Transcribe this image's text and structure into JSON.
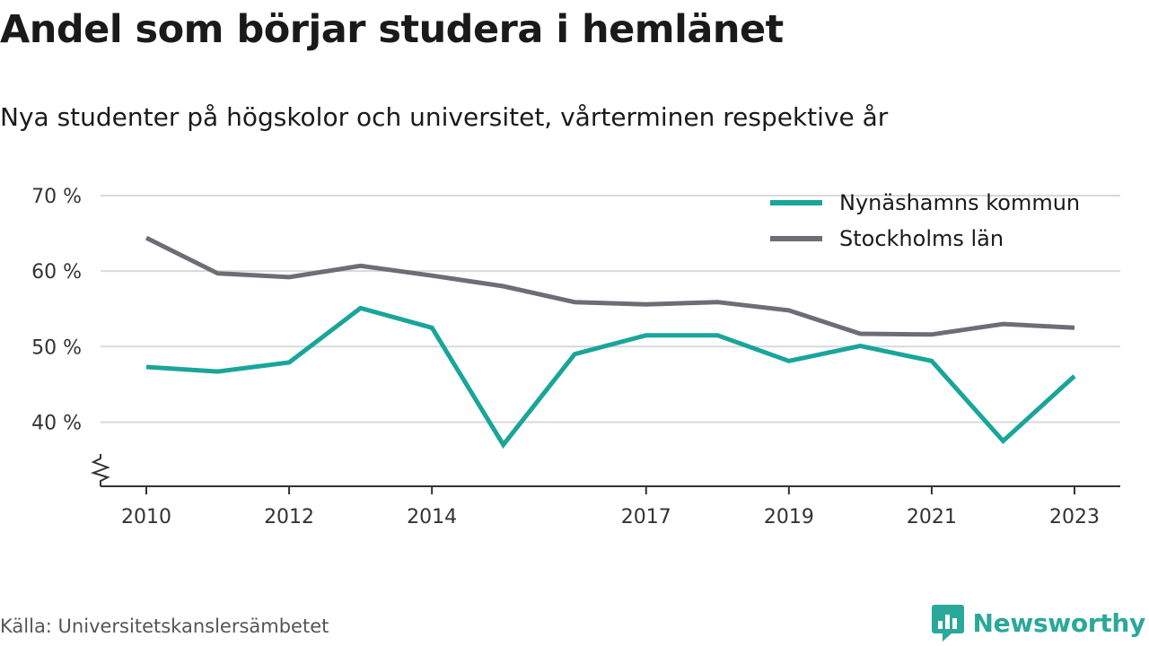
{
  "title": "Andel som börjar studera i hemlänet",
  "subtitle": "Nya studenter på högskolor och universitet, vårterminen respektive år",
  "source": "Källa: Universitetskanslersämbetet",
  "brand": {
    "name": "Newsworthy",
    "icon": "newsworthy-logo-icon",
    "color": "#2aa89a"
  },
  "chart_data": {
    "type": "line",
    "title": "Andel som börjar studera i hemlänet",
    "subtitle": "Nya studenter på högskolor och universitet, vårterminen respektive år",
    "xlabel": "",
    "ylabel": "",
    "x": [
      2010,
      2011,
      2012,
      2013,
      2014,
      2015,
      2016,
      2017,
      2018,
      2019,
      2020,
      2021,
      2022,
      2023
    ],
    "x_ticks": [
      "2010",
      "2012",
      "2014",
      "2017",
      "2019",
      "2021",
      "2023"
    ],
    "y_ticks": [
      "40 %",
      "50 %",
      "60 %",
      "70 %"
    ],
    "ylim": [
      31.5,
      70
    ],
    "xlim": [
      2010,
      2023
    ],
    "grid": true,
    "y_axis_break": true,
    "legend_position": "top-right",
    "series": [
      {
        "name": "Nynäshamns kommun",
        "color": "#1aa59a",
        "values": [
          47.3,
          46.7,
          47.9,
          55.1,
          52.5,
          37.0,
          49.0,
          51.5,
          51.5,
          48.1,
          50.1,
          48.1,
          37.5,
          46.1
        ]
      },
      {
        "name": "Stockholms län",
        "color": "#6e6d75",
        "values": [
          64.4,
          59.7,
          59.2,
          60.7,
          59.4,
          58.0,
          55.9,
          55.6,
          55.9,
          54.8,
          51.7,
          51.6,
          53.0,
          52.5
        ]
      }
    ]
  }
}
